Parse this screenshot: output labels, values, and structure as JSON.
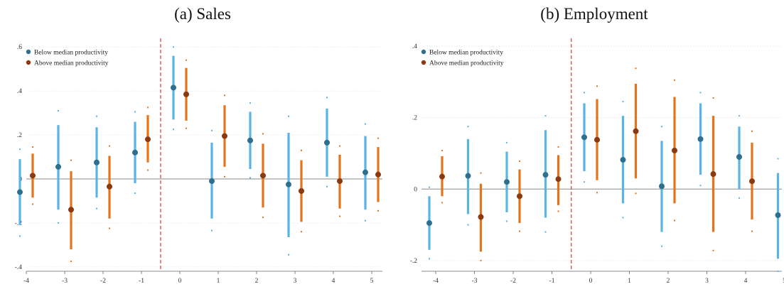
{
  "chart_data": [
    {
      "type": "scatter",
      "title": "(a) Sales",
      "x": [
        -4,
        -3,
        -2,
        -1,
        0,
        1,
        2,
        3,
        4,
        5
      ],
      "ylim": [
        -0.42,
        0.62
      ],
      "yticks": [
        -0.4,
        -0.2,
        0,
        0.2,
        0.4,
        0.6
      ],
      "ytick_labels": [
        "-.4",
        "-.2",
        "0",
        ".2",
        ".4",
        ".6"
      ],
      "xtick_labels": [
        "-4",
        "-3",
        "-2",
        "-1",
        "0",
        "1",
        "2",
        "3",
        "4",
        "5"
      ],
      "event_line_x": -0.5,
      "grid": true,
      "legend_position": "top-left",
      "series": [
        {
          "name": "Below median productivity",
          "color": "#2e6f8e",
          "bar_color": "#5ab4e5",
          "values": [
            -0.06,
            0.055,
            0.075,
            0.12,
            0.415,
            -0.01,
            0.175,
            -0.025,
            0.165,
            0.03
          ],
          "ci90_low": [
            -0.21,
            -0.14,
            -0.085,
            -0.02,
            0.27,
            -0.18,
            0.045,
            -0.265,
            0.01,
            -0.14
          ],
          "ci90_high": [
            0.09,
            0.245,
            0.235,
            0.26,
            0.56,
            0.165,
            0.305,
            0.21,
            0.32,
            0.195
          ],
          "ci95_low": [
            -0.26,
            -0.2,
            -0.135,
            -0.065,
            0.225,
            -0.235,
            0.005,
            -0.345,
            -0.035,
            -0.19
          ],
          "ci95_high": [
            0.135,
            0.31,
            0.285,
            0.305,
            0.6,
            0.22,
            0.345,
            0.285,
            0.37,
            0.25
          ]
        },
        {
          "name": "Above median productivity",
          "color": "#8b3a0f",
          "bar_color": "#e5731a",
          "values": [
            0.015,
            -0.14,
            -0.035,
            0.18,
            0.385,
            0.195,
            0.015,
            -0.055,
            -0.01,
            0.02
          ],
          "ci90_low": [
            -0.085,
            -0.32,
            -0.18,
            0.075,
            0.265,
            0.055,
            -0.13,
            -0.195,
            -0.135,
            -0.105
          ],
          "ci90_high": [
            0.115,
            0.035,
            0.105,
            0.29,
            0.505,
            0.335,
            0.16,
            0.085,
            0.11,
            0.145
          ],
          "ci95_low": [
            -0.115,
            -0.375,
            -0.225,
            0.04,
            0.23,
            0.01,
            -0.175,
            -0.24,
            -0.17,
            -0.145
          ],
          "ci95_high": [
            0.145,
            0.085,
            0.15,
            0.325,
            0.54,
            0.38,
            0.205,
            0.13,
            0.15,
            0.185
          ]
        }
      ]
    },
    {
      "type": "scatter",
      "title": "(b) Employment",
      "x": [
        -4,
        -3,
        -2,
        -1,
        0,
        1,
        2,
        3,
        4,
        5
      ],
      "ylim": [
        -0.23,
        0.41
      ],
      "yticks": [
        -0.2,
        0,
        0.2,
        0.4
      ],
      "ytick_labels": [
        "-.2",
        "0",
        ".2",
        ".4"
      ],
      "xtick_labels": [
        "-4",
        "-3",
        "-2",
        "-1",
        "0",
        "1",
        "2",
        "3",
        "4",
        "5"
      ],
      "event_line_x": -0.5,
      "grid": true,
      "legend_position": "top-left",
      "series": [
        {
          "name": "Below median productivity",
          "color": "#2e6f8e",
          "bar_color": "#5ab4e5",
          "values": [
            -0.095,
            0.037,
            0.02,
            0.04,
            0.145,
            0.082,
            0.008,
            0.14,
            0.09,
            -0.073
          ],
          "ci90_low": [
            -0.17,
            -0.07,
            -0.065,
            -0.08,
            0.05,
            -0.04,
            -0.12,
            0.04,
            0.0,
            -0.195
          ],
          "ci90_high": [
            -0.02,
            0.14,
            0.105,
            0.165,
            0.24,
            0.205,
            0.135,
            0.24,
            0.175,
            0.045
          ],
          "ci95_low": [
            -0.195,
            -0.1,
            -0.09,
            -0.12,
            0.02,
            -0.08,
            -0.16,
            0.01,
            -0.025,
            -0.23
          ],
          "ci95_high": [
            0.005,
            0.175,
            0.13,
            0.205,
            0.27,
            0.245,
            0.175,
            0.27,
            0.205,
            0.085
          ]
        },
        {
          "name": "Above median productivity",
          "color": "#8b3a0f",
          "bar_color": "#e5731a",
          "values": [
            0.035,
            -0.078,
            -0.02,
            0.028,
            0.138,
            0.162,
            0.108,
            0.042,
            0.022,
            -0.018
          ],
          "ci90_low": [
            -0.02,
            -0.175,
            -0.095,
            -0.045,
            0.025,
            0.03,
            -0.04,
            -0.12,
            -0.085,
            -0.12
          ],
          "ci90_high": [
            0.092,
            0.015,
            0.055,
            0.095,
            0.252,
            0.295,
            0.258,
            0.205,
            0.13,
            0.082
          ],
          "ci95_low": [
            -0.038,
            -0.2,
            -0.118,
            -0.062,
            -0.01,
            -0.012,
            -0.088,
            -0.172,
            -0.118,
            -0.152
          ],
          "ci95_high": [
            0.108,
            0.045,
            0.078,
            0.118,
            0.288,
            0.338,
            0.305,
            0.255,
            0.162,
            0.115
          ]
        }
      ]
    }
  ]
}
